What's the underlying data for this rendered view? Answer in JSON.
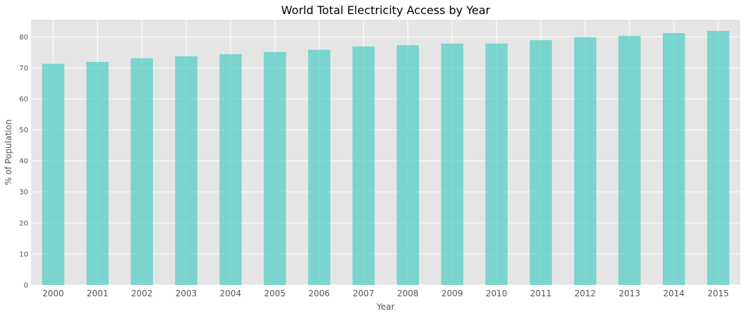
{
  "chart_data": {
    "type": "bar",
    "title": "World Total Electricity Access by Year",
    "xlabel": "Year",
    "ylabel": "% of Population",
    "categories": [
      "2000",
      "2001",
      "2002",
      "2003",
      "2004",
      "2005",
      "2006",
      "2007",
      "2008",
      "2009",
      "2010",
      "2011",
      "2012",
      "2013",
      "2014",
      "2015"
    ],
    "values": [
      71.3,
      71.9,
      73.1,
      73.7,
      74.4,
      75.1,
      75.8,
      76.9,
      77.3,
      77.8,
      77.8,
      78.9,
      79.9,
      80.3,
      81.2,
      81.9
    ],
    "ylim": [
      0,
      85.5
    ],
    "yticks": [
      0,
      10,
      20,
      30,
      40,
      50,
      60,
      70,
      80
    ],
    "grid": true,
    "bar_color": "#4ecdc4",
    "background_color": "#e5e5e5",
    "grid_color": "#ffffff"
  }
}
